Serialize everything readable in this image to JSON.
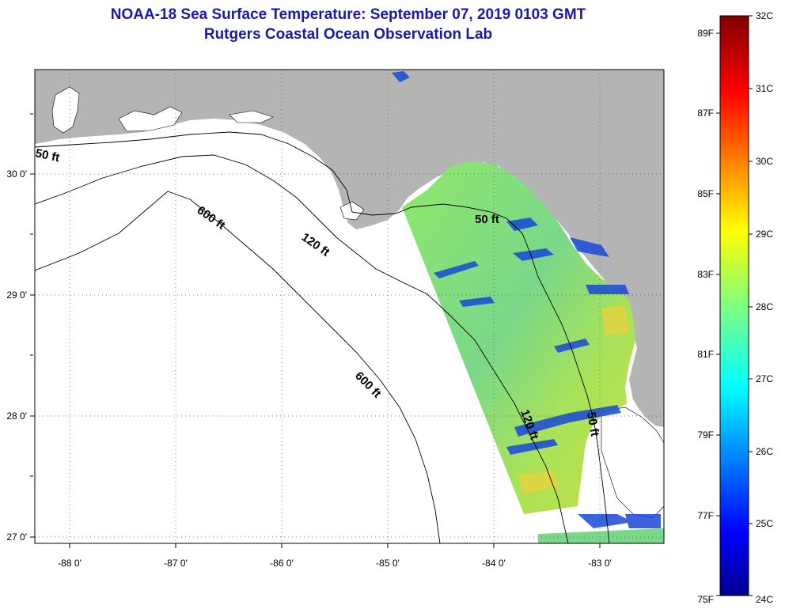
{
  "header": {
    "title": "NOAA-18 Sea Surface Temperature:  September 07, 2019 0103 GMT",
    "subtitle": "Rutgers Coastal Ocean Observation Lab"
  },
  "map": {
    "lon_labels": [
      "-88 0'",
      "-87 0'",
      "-86 0'",
      "-85 0'",
      "-84 0'",
      "-83 0'"
    ],
    "lat_labels": [
      "30 0'",
      "29 0'",
      "28 0'",
      "27 0'"
    ],
    "contour_labels": [
      "50 ft",
      "600 ft",
      "120 ft",
      "50 ft",
      "600 ft",
      "120 ft",
      "50 ft"
    ],
    "colors": {
      "land": "#b4b4b4",
      "water": "#ffffff",
      "title": "#1a1aa8"
    }
  },
  "colorbar": {
    "celsius_labels": [
      "32C",
      "31C",
      "30C",
      "29C",
      "28C",
      "27C",
      "26C",
      "25C",
      "24C"
    ],
    "fahrenheit_labels": [
      "89F",
      "87F",
      "85F",
      "83F",
      "81F",
      "79F",
      "77F",
      "75F"
    ],
    "range_c": [
      24,
      32
    ]
  }
}
